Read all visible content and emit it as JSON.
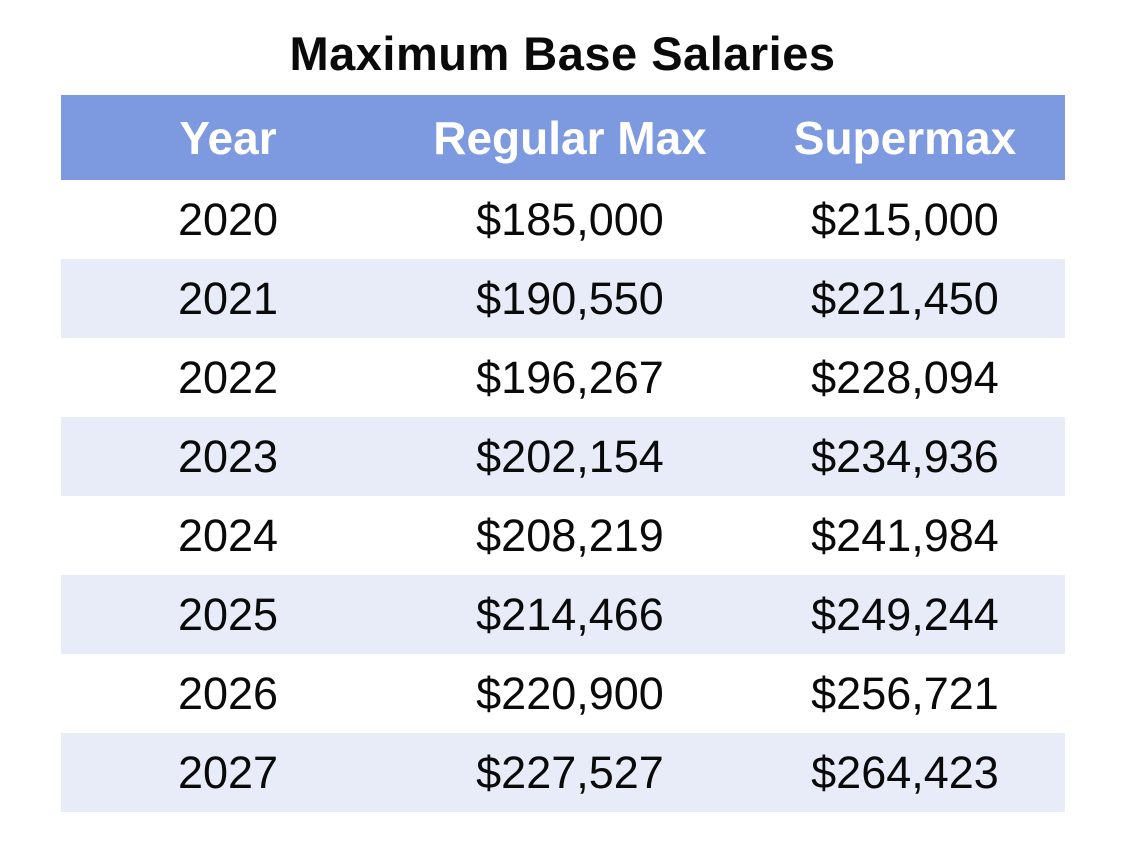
{
  "title": "Maximum Base Salaries",
  "table": {
    "headers": [
      "Year",
      "Regular Max",
      "Supermax"
    ],
    "rows": [
      {
        "year": "2020",
        "regular_max": "$185,000",
        "supermax": "$215,000"
      },
      {
        "year": "2021",
        "regular_max": "$190,550",
        "supermax": "$221,450"
      },
      {
        "year": "2022",
        "regular_max": "$196,267",
        "supermax": "$228,094"
      },
      {
        "year": "2023",
        "regular_max": "$202,154",
        "supermax": "$234,936"
      },
      {
        "year": "2024",
        "regular_max": "$208,219",
        "supermax": "$241,984"
      },
      {
        "year": "2025",
        "regular_max": "$214,466",
        "supermax": "$249,244"
      },
      {
        "year": "2026",
        "regular_max": "$220,900",
        "supermax": "$256,721"
      },
      {
        "year": "2027",
        "regular_max": "$227,527",
        "supermax": "$264,423"
      }
    ]
  },
  "colors": {
    "header_bg": "#7D99DF",
    "header_text": "#FFFFFF",
    "row_bg": "#FFFFFF",
    "row_alt_bg": "#E7ECF8",
    "body_bg": "#FFFFFF",
    "text": "#0A0A0A"
  },
  "chart_data": {
    "type": "table",
    "title": "Maximum Base Salaries",
    "columns": [
      "Year",
      "Regular Max",
      "Supermax"
    ],
    "rows": [
      [
        "2020",
        185000,
        215000
      ],
      [
        "2021",
        190550,
        221450
      ],
      [
        "2022",
        196267,
        228094
      ],
      [
        "2023",
        202154,
        234936
      ],
      [
        "2024",
        208219,
        241984
      ],
      [
        "2025",
        214466,
        249244
      ],
      [
        "2026",
        220900,
        256721
      ],
      [
        "2027",
        227527,
        264423
      ]
    ]
  }
}
